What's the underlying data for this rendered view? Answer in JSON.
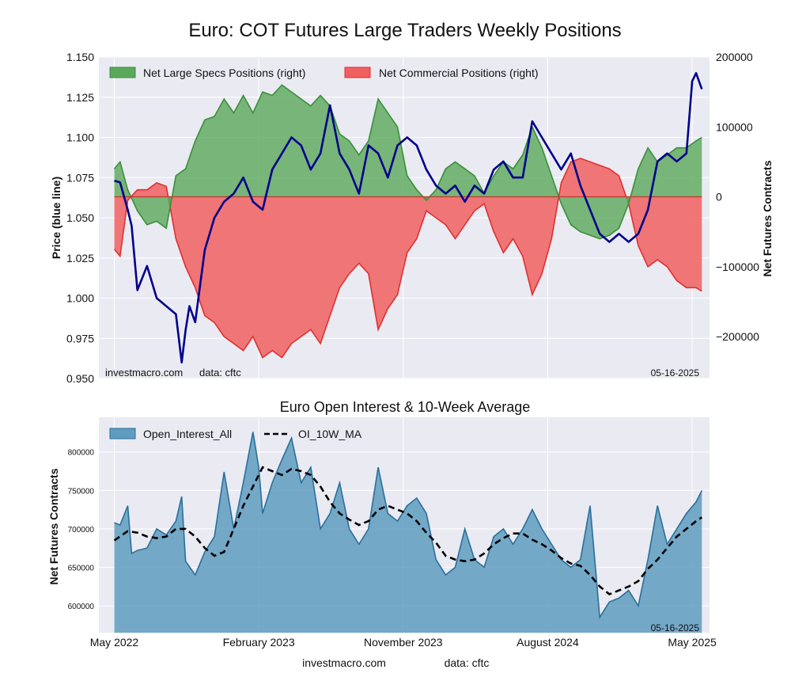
{
  "figure": {
    "title": "Euro: COT Futures Large Traders Weekly Positions",
    "footer_site": "investmacro.com",
    "footer_source": "data: cftc"
  },
  "colors": {
    "panel_bg": "#eaeaf2",
    "grid": "#ffffff",
    "spec_fill": "#5aa85a",
    "spec_line": "#3a8f3a",
    "comm_fill": "#f06060",
    "comm_line": "#e03030",
    "price_line": "#00008b",
    "oi_fill": "#5f9cc0",
    "oi_line": "#2a6f9a",
    "ma_line": "#000000"
  },
  "chart_data": [
    {
      "type": "line+area",
      "name": "positions",
      "title": "",
      "ylabel_left": "Price (blue line)",
      "ylabel_right": "Net Futures Contracts",
      "source_left": "investmacro.com",
      "source_mid": "data: cftc",
      "date_label": "05-16-2025",
      "ylim_left": [
        0.95,
        1.15
      ],
      "ylim_right": [
        -260000,
        200000
      ],
      "yticks_left": [
        "1.150",
        "1.125",
        "1.100",
        "1.075",
        "1.050",
        "1.025",
        "1.000",
        "0.975",
        "0.950"
      ],
      "yticks_right": [
        "200000",
        "100000",
        "0",
        "−100000",
        "−200000"
      ],
      "legend": [
        "Net Large Specs Positions (right)",
        "Net Commercial Positions (right)"
      ],
      "x_range": [
        2022.25,
        2025.42
      ],
      "series": [
        {
          "name": "Net Large Specs Positions (right)",
          "x": [
            2022.33,
            2022.36,
            2022.4,
            2022.45,
            2022.5,
            2022.55,
            2022.6,
            2022.65,
            2022.7,
            2022.75,
            2022.8,
            2022.85,
            2022.9,
            2022.95,
            2023.0,
            2023.05,
            2023.1,
            2023.15,
            2023.2,
            2023.25,
            2023.3,
            2023.35,
            2023.4,
            2023.45,
            2023.5,
            2023.55,
            2023.6,
            2023.65,
            2023.7,
            2023.75,
            2023.8,
            2023.85,
            2023.9,
            2023.95,
            2024.0,
            2024.05,
            2024.1,
            2024.15,
            2024.2,
            2024.25,
            2024.3,
            2024.35,
            2024.4,
            2024.45,
            2024.5,
            2024.55,
            2024.6,
            2024.65,
            2024.7,
            2024.75,
            2024.8,
            2024.85,
            2024.9,
            2024.95,
            2025.0,
            2025.05,
            2025.1,
            2025.15,
            2025.2,
            2025.25,
            2025.3,
            2025.35,
            2025.38
          ],
          "values": [
            40000,
            50000,
            10000,
            -20000,
            -40000,
            -35000,
            -45000,
            30000,
            40000,
            80000,
            110000,
            115000,
            140000,
            120000,
            145000,
            120000,
            150000,
            145000,
            160000,
            150000,
            140000,
            130000,
            145000,
            130000,
            90000,
            80000,
            60000,
            80000,
            140000,
            120000,
            100000,
            30000,
            10000,
            -5000,
            10000,
            40000,
            50000,
            40000,
            30000,
            5000,
            30000,
            50000,
            40000,
            60000,
            100000,
            70000,
            30000,
            -10000,
            -40000,
            -50000,
            -55000,
            -60000,
            -55000,
            -45000,
            -10000,
            40000,
            70000,
            50000,
            60000,
            70000,
            70000,
            80000,
            85000
          ]
        },
        {
          "name": "Net Commercial Positions (right)",
          "x": [
            2022.33,
            2022.36,
            2022.4,
            2022.45,
            2022.5,
            2022.55,
            2022.6,
            2022.65,
            2022.7,
            2022.75,
            2022.8,
            2022.85,
            2022.9,
            2022.95,
            2023.0,
            2023.05,
            2023.1,
            2023.15,
            2023.2,
            2023.25,
            2023.3,
            2023.35,
            2023.4,
            2023.45,
            2023.5,
            2023.55,
            2023.6,
            2023.65,
            2023.7,
            2023.75,
            2023.8,
            2023.85,
            2023.9,
            2023.95,
            2024.0,
            2024.05,
            2024.1,
            2024.15,
            2024.2,
            2024.25,
            2024.3,
            2024.35,
            2024.4,
            2024.45,
            2024.5,
            2024.55,
            2024.6,
            2024.65,
            2024.7,
            2024.75,
            2024.8,
            2024.85,
            2024.9,
            2024.95,
            2025.0,
            2025.05,
            2025.1,
            2025.15,
            2025.2,
            2025.25,
            2025.3,
            2025.35,
            2025.38
          ],
          "values": [
            -75000,
            -85000,
            -5000,
            10000,
            10000,
            20000,
            15000,
            -60000,
            -100000,
            -130000,
            -170000,
            -180000,
            -200000,
            -210000,
            -220000,
            -200000,
            -230000,
            -220000,
            -230000,
            -210000,
            -200000,
            -190000,
            -210000,
            -170000,
            -130000,
            -110000,
            -95000,
            -110000,
            -190000,
            -160000,
            -140000,
            -80000,
            -60000,
            -20000,
            -30000,
            -40000,
            -60000,
            -40000,
            -20000,
            -10000,
            -50000,
            -80000,
            -60000,
            -85000,
            -140000,
            -110000,
            -60000,
            20000,
            50000,
            55000,
            50000,
            45000,
            40000,
            30000,
            -10000,
            -70000,
            -100000,
            -90000,
            -100000,
            -120000,
            -130000,
            -130000,
            -135000
          ]
        },
        {
          "name": "Price (blue line)",
          "x": [
            2022.33,
            2022.36,
            2022.4,
            2022.42,
            2022.45,
            2022.5,
            2022.55,
            2022.6,
            2022.65,
            2022.68,
            2022.7,
            2022.72,
            2022.75,
            2022.8,
            2022.85,
            2022.9,
            2022.95,
            2023.0,
            2023.05,
            2023.1,
            2023.15,
            2023.2,
            2023.25,
            2023.3,
            2023.35,
            2023.4,
            2023.45,
            2023.5,
            2023.55,
            2023.6,
            2023.65,
            2023.7,
            2023.75,
            2023.8,
            2023.85,
            2023.9,
            2023.95,
            2024.0,
            2024.05,
            2024.1,
            2024.15,
            2024.2,
            2024.25,
            2024.3,
            2024.35,
            2024.4,
            2024.45,
            2024.5,
            2024.55,
            2024.6,
            2024.65,
            2024.7,
            2024.75,
            2024.8,
            2024.85,
            2024.9,
            2024.95,
            2025.0,
            2025.05,
            2025.1,
            2025.15,
            2025.2,
            2025.25,
            2025.3,
            2025.33,
            2025.35,
            2025.38
          ],
          "values": [
            1.073,
            1.072,
            1.055,
            1.045,
            1.005,
            1.02,
            1.0,
            0.995,
            0.99,
            0.96,
            0.98,
            0.995,
            0.985,
            1.03,
            1.05,
            1.06,
            1.065,
            1.075,
            1.06,
            1.055,
            1.08,
            1.09,
            1.1,
            1.095,
            1.08,
            1.09,
            1.12,
            1.09,
            1.08,
            1.065,
            1.095,
            1.09,
            1.075,
            1.095,
            1.1,
            1.095,
            1.08,
            1.07,
            1.065,
            1.07,
            1.06,
            1.07,
            1.065,
            1.08,
            1.085,
            1.075,
            1.075,
            1.11,
            1.1,
            1.09,
            1.08,
            1.09,
            1.07,
            1.055,
            1.04,
            1.035,
            1.04,
            1.035,
            1.04,
            1.055,
            1.085,
            1.09,
            1.085,
            1.09,
            1.135,
            1.14,
            1.13
          ]
        }
      ]
    },
    {
      "type": "area+line",
      "name": "open_interest",
      "title": "Euro Open Interest & 10-Week Average",
      "ylabel": "Net Futures Contracts",
      "date_label": "05-16-2025",
      "ylim": [
        565000,
        845000
      ],
      "yticks": [
        "800000",
        "750000",
        "700000",
        "650000",
        "600000"
      ],
      "xtick_labels": [
        "May 2022",
        "February 2023",
        "November 2023",
        "August 2024",
        "May 2025"
      ],
      "xtick_positions": [
        2022.33,
        2023.08,
        2023.83,
        2024.58,
        2025.33
      ],
      "x_range": [
        2022.25,
        2025.42
      ],
      "legend": [
        "Open_Interest_All",
        "OI_10W_MA"
      ],
      "series": [
        {
          "name": "Open_Interest_All",
          "x": [
            2022.33,
            2022.36,
            2022.4,
            2022.42,
            2022.45,
            2022.5,
            2022.55,
            2022.6,
            2022.65,
            2022.68,
            2022.7,
            2022.75,
            2022.8,
            2022.85,
            2022.9,
            2022.95,
            2023.0,
            2023.05,
            2023.08,
            2023.1,
            2023.15,
            2023.2,
            2023.25,
            2023.3,
            2023.35,
            2023.4,
            2023.45,
            2023.5,
            2023.55,
            2023.6,
            2023.65,
            2023.7,
            2023.75,
            2023.8,
            2023.85,
            2023.9,
            2023.95,
            2024.0,
            2024.05,
            2024.1,
            2024.15,
            2024.2,
            2024.25,
            2024.3,
            2024.35,
            2024.4,
            2024.45,
            2024.5,
            2024.55,
            2024.6,
            2024.65,
            2024.7,
            2024.75,
            2024.8,
            2024.85,
            2024.9,
            2024.95,
            2025.0,
            2025.05,
            2025.1,
            2025.15,
            2025.2,
            2025.25,
            2025.3,
            2025.35,
            2025.38
          ],
          "values": [
            708000,
            705000,
            730000,
            668000,
            672000,
            675000,
            700000,
            692000,
            710000,
            742000,
            658000,
            640000,
            670000,
            690000,
            774000,
            700000,
            760000,
            826000,
            780000,
            720000,
            760000,
            790000,
            818000,
            760000,
            780000,
            700000,
            720000,
            760000,
            700000,
            680000,
            700000,
            780000,
            720000,
            710000,
            730000,
            740000,
            720000,
            660000,
            640000,
            650000,
            700000,
            660000,
            650000,
            690000,
            700000,
            680000,
            700000,
            725000,
            700000,
            680000,
            660000,
            650000,
            660000,
            730000,
            585000,
            605000,
            610000,
            620000,
            600000,
            660000,
            730000,
            680000,
            700000,
            720000,
            735000,
            750000
          ]
        },
        {
          "name": "OI_10W_MA",
          "x": [
            2022.33,
            2022.4,
            2022.45,
            2022.5,
            2022.55,
            2022.6,
            2022.65,
            2022.7,
            2022.75,
            2022.8,
            2022.85,
            2022.9,
            2022.95,
            2023.0,
            2023.05,
            2023.1,
            2023.15,
            2023.2,
            2023.25,
            2023.3,
            2023.35,
            2023.4,
            2023.45,
            2023.5,
            2023.55,
            2023.6,
            2023.65,
            2023.7,
            2023.75,
            2023.8,
            2023.85,
            2023.9,
            2023.95,
            2024.0,
            2024.05,
            2024.1,
            2024.15,
            2024.2,
            2024.25,
            2024.3,
            2024.35,
            2024.4,
            2024.45,
            2024.5,
            2024.55,
            2024.6,
            2024.65,
            2024.7,
            2024.75,
            2024.8,
            2024.85,
            2024.9,
            2024.95,
            2025.0,
            2025.05,
            2025.1,
            2025.15,
            2025.2,
            2025.25,
            2025.3,
            2025.35,
            2025.38
          ],
          "values": [
            685000,
            697000,
            695000,
            690000,
            688000,
            690000,
            700000,
            700000,
            690000,
            675000,
            665000,
            670000,
            700000,
            730000,
            755000,
            780000,
            775000,
            770000,
            778000,
            775000,
            770000,
            755000,
            735000,
            720000,
            712000,
            705000,
            710000,
            725000,
            730000,
            725000,
            720000,
            710000,
            695000,
            682000,
            665000,
            660000,
            658000,
            660000,
            668000,
            680000,
            688000,
            694000,
            694000,
            686000,
            680000,
            672000,
            662000,
            655000,
            652000,
            640000,
            625000,
            615000,
            620000,
            625000,
            632000,
            648000,
            660000,
            675000,
            690000,
            700000,
            710000,
            715000
          ]
        }
      ]
    }
  ]
}
